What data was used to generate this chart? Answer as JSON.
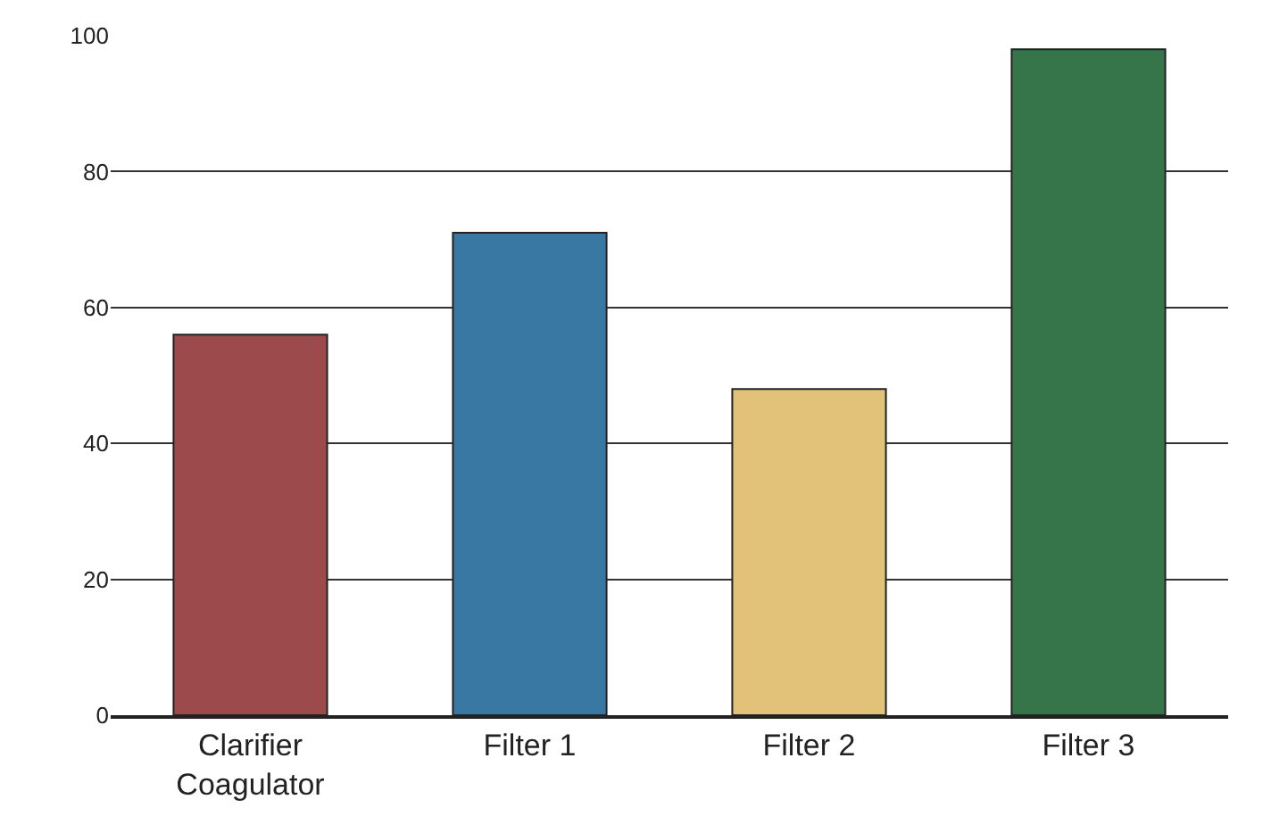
{
  "chart_data": {
    "type": "bar",
    "categories": [
      "Clarifier\nCoagulator",
      "Filter 1",
      "Filter 2",
      "Filter 3"
    ],
    "values": [
      56,
      71,
      48,
      98
    ],
    "colors": [
      "#9c4a4c",
      "#3a78a4",
      "#e2c278",
      "#36754a"
    ],
    "ylim": [
      0,
      100
    ],
    "yticks": [
      0,
      20,
      40,
      60,
      80,
      100
    ],
    "grid": "y"
  }
}
